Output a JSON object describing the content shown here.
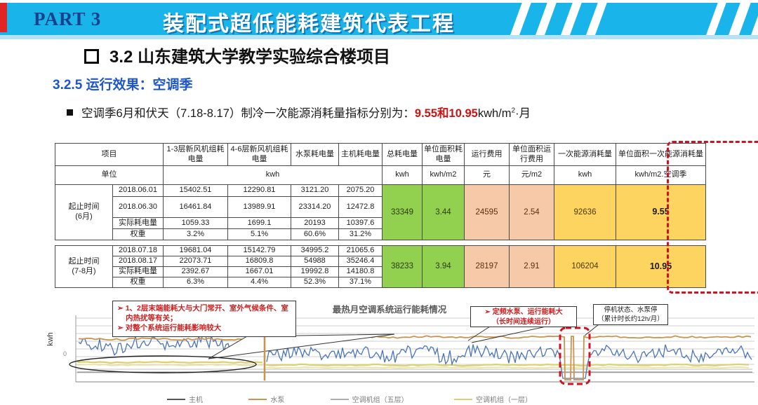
{
  "banner": {
    "part_label": "PART 3",
    "title": "装配式超低能耗建筑代表工程",
    "colors": {
      "background": "#18b4ea",
      "left_strip": "#e02525",
      "part_text": "#16418c"
    }
  },
  "section": {
    "title": "3.2 山东建筑大学教学实验综合楼项目",
    "subtitle": "3.2.5 运行效果：空调季"
  },
  "bullet": {
    "prefix": "空调季6月和伏天（7.18-8.17）制冷一次能源消耗量指标分别为：",
    "value1": "9.55",
    "joiner": "和",
    "value2": "10.95",
    "unit_base": "kwh/m",
    "unit_sup": "2",
    "unit_tail": "·月",
    "value_color": "#cf1212"
  },
  "table": {
    "headers": [
      "项目",
      "1-3层新风机组耗电量",
      "4-6层新风机组耗电量",
      "水泵耗电量",
      "主机耗电量",
      "总耗电量",
      "单位面积耗电量",
      "运行费用",
      "单位面积运行费用",
      "一次能源消耗量",
      "单位面积一次能源消耗量"
    ],
    "unit": {
      "label": "单位",
      "kwh_group": "kwh",
      "cols": [
        "kwh",
        "kwh/m2",
        "元",
        "元/m2",
        "kwh",
        "kwh/m2.空调季"
      ]
    },
    "blocks": [
      {
        "period": "起止时间\n(6月)",
        "rows": [
          [
            "2018.06.01",
            "15402.51",
            "12290.81",
            "3121.20",
            "2075.20"
          ],
          [
            "2018.06.30",
            "16461.84",
            "13989.91",
            "23314.20",
            "12472.8"
          ],
          [
            "实际耗电量",
            "1059.33",
            "1699.1",
            "20193",
            "10397.6"
          ],
          [
            "权重",
            "3.2%",
            "5.1%",
            "60.6%",
            "31.2%"
          ]
        ],
        "total_power": "33349",
        "per_area_power": "3.44",
        "cost": "24595",
        "cost_per_area": "2.54",
        "primary_energy": "92636",
        "primary_per_area": "9.55"
      },
      {
        "period": "起止时间\n(7-8月)",
        "rows": [
          [
            "2018.07.18",
            "19681.04",
            "15142.79",
            "34995.2",
            "21065.6"
          ],
          [
            "2018.08.17",
            "22073.71",
            "16809.8",
            "54988",
            "35246.4"
          ],
          [
            "实际耗电量",
            "2392.67",
            "1667.01",
            "19992.8",
            "14180.8"
          ],
          [
            "权重",
            "6.3%",
            "4.4%",
            "52.3%",
            "37.1%"
          ]
        ],
        "total_power": "38233",
        "per_area_power": "3.94",
        "cost": "28197",
        "cost_per_area": "2.91",
        "primary_energy": "106204",
        "primary_per_area": "10.95"
      }
    ],
    "cell_colors": {
      "green": "#92d04f",
      "peach": "#f6caa8",
      "yellow": "#fdd45f",
      "highlight_dash": "#cf1322"
    }
  },
  "chart": {
    "title": "最热月空调系统运行能耗情况",
    "y_label": "kwh",
    "y_tick": "0",
    "callout_left": {
      "line1": "➢ 1、2层末端能耗大与大门常开、室外气候条件、室内热扰等有关；",
      "line2": "➢ 对整个系统运行能耗影响较大"
    },
    "callout_pump": {
      "line1": "➢ 定频水泵、运行能耗大",
      "line2": "（长时间连续运行）"
    },
    "callout_stop": {
      "line1": "停机状态、水泵停",
      "line2": "（累计时长约12h/月）"
    },
    "legend": [
      {
        "label": "主机",
        "color": "#55555e"
      },
      {
        "label": "水泵",
        "color": "#c9944d"
      },
      {
        "label": "空调机组（五层）",
        "color": "#adadad"
      },
      {
        "label": "空调机组（一层）",
        "color": "#ddd06e"
      }
    ]
  }
}
